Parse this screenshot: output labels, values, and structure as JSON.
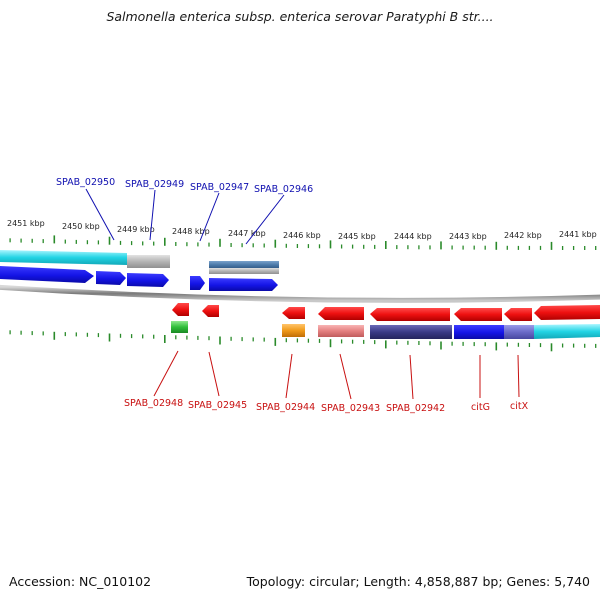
{
  "title": "Salmonella enterica subsp. enterica serovar Paratyphi B str....",
  "footer": {
    "accession": "Accession: NC_010102",
    "summary": "Topology: circular; Length: 4,858,887 bp; Genes: 5,740"
  },
  "axis_ticks": [
    "2451 kbp",
    "2450 kbp",
    "2449 kbp",
    "2448 kbp",
    "2447 kbp",
    "2446 kbp",
    "2445 kbp",
    "2444 kbp",
    "2443 kbp",
    "2442 kbp",
    "2441 kbp"
  ],
  "forward_gene_labels": [
    "SPAB_02950",
    "SPAB_02949",
    "SPAB_02947",
    "SPAB_02946"
  ],
  "reverse_gene_labels": [
    "SPAB_02948",
    "SPAB_02945",
    "SPAB_02944",
    "SPAB_02943",
    "SPAB_02942",
    "citG",
    "citX"
  ],
  "colors": {
    "forward_label": "#1010b0",
    "reverse_label": "#c81010",
    "tick": "#2a8a2a",
    "backbone": "#8c8c8c",
    "forward_gene": "#1a1aee",
    "reverse_gene": "#ee1111",
    "cyan_feature": "#22d4e4",
    "gray_feature": "#b4b4b4",
    "steel_feature": "#4a78a8",
    "green_feature": "#2fbf3a",
    "orange_feature": "#f09a1a",
    "pink_feature": "#e48080",
    "navy_feature": "#3a3a86",
    "purple_feature": "#6a6ac8"
  }
}
